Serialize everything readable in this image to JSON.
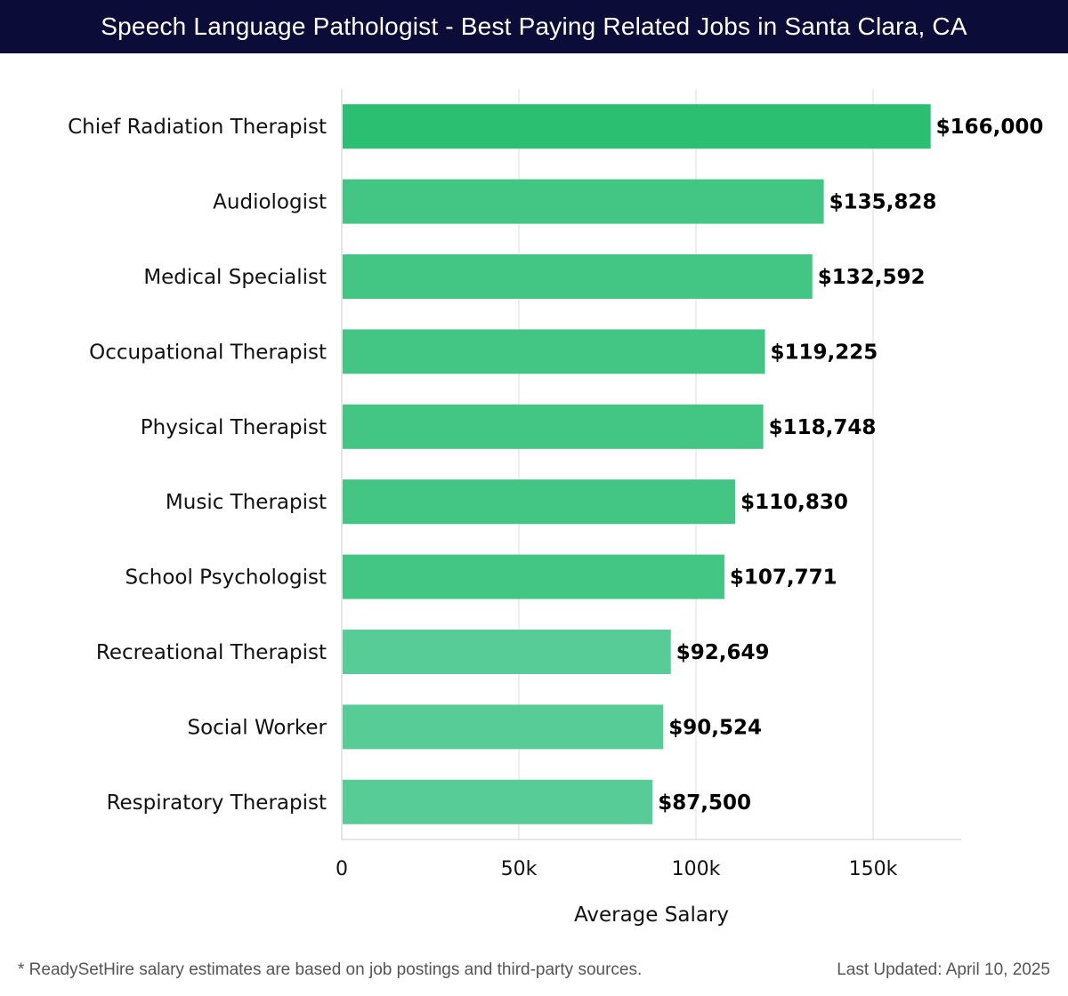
{
  "header": {
    "title": "Speech Language Pathologist - Best Paying Related Jobs in Santa Clara, CA"
  },
  "footer": {
    "note": "* ReadySetHire salary estimates are based on job postings and third-party sources.",
    "updated": "Last Updated: April 10, 2025"
  },
  "colors": {
    "header_bg": "#0c0c38",
    "bar_top": "#2bbf72",
    "bar_mid": "#43c584",
    "bar_low": "#58cc96",
    "grid": "#dddddd"
  },
  "chart_data": {
    "type": "bar",
    "orientation": "horizontal",
    "title": "Speech Language Pathologist - Best Paying Related Jobs in Santa Clara, CA",
    "xlabel": "Average Salary",
    "ylabel": "",
    "xlim": [
      0,
      175000
    ],
    "xticks": [
      {
        "value": 0,
        "label": "0"
      },
      {
        "value": 50000,
        "label": "50k"
      },
      {
        "value": 100000,
        "label": "100k"
      },
      {
        "value": 150000,
        "label": "150k"
      }
    ],
    "grid": true,
    "categories": [
      "Chief Radiation Therapist",
      "Audiologist",
      "Medical Specialist",
      "Occupational Therapist",
      "Physical Therapist",
      "Music Therapist",
      "School Psychologist",
      "Recreational Therapist",
      "Social Worker",
      "Respiratory Therapist"
    ],
    "values": [
      166000,
      135828,
      132592,
      119225,
      118748,
      110830,
      107771,
      92649,
      90524,
      87500
    ],
    "value_labels": [
      "$166,000",
      "$135,828",
      "$132,592",
      "$119,225",
      "$118,748",
      "$110,830",
      "$107,771",
      "$92,649",
      "$90,524",
      "$87,500"
    ]
  }
}
